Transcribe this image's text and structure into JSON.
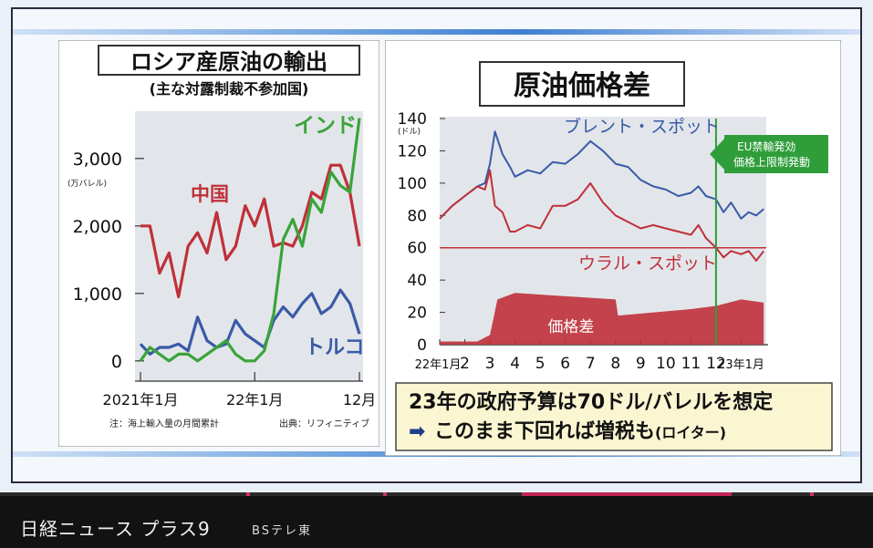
{
  "footer": {
    "title": "日経ニュース プラス9",
    "channel": "BSテレ東"
  },
  "colors": {
    "india": "#3aa43a",
    "china": "#c0303a",
    "turkey": "#3a5aa8",
    "brent": "#3a5aa8",
    "urals": "#c0303a",
    "spread": "#c0303a",
    "callout": "#2f9e3a"
  },
  "left": {
    "title": "ロシア産原油の輸出",
    "subtitle": "(主な対露制裁不参加国)",
    "note": "注：海上輸入量の月間累計",
    "source": "出典：リフィニティブ"
  },
  "right": {
    "title": "原油価格差",
    "callout_lines": [
      "EU禁輸発効",
      "価格上限制発動"
    ],
    "info_line1": "23年の政府予算は70ドル/バレルを想定",
    "info_arrow": "➡",
    "info_line2_main": "このまま下回れば増税も",
    "info_line2_small": "(ロイター)"
  },
  "chart_data": [
    {
      "type": "line",
      "title": "ロシア産原油の輸出",
      "subtitle": "(主な対露制裁不参加国)",
      "ylabel": "(万バレル)",
      "ylim": [
        -300,
        3700
      ],
      "yticks": [
        0,
        1000,
        2000,
        3000
      ],
      "ytick_labels": [
        "0",
        "1,000",
        "2,000",
        "3,000"
      ],
      "x_tick_labels": [
        "2021年1月",
        "22年1月",
        "12月"
      ],
      "x_tick_index": [
        0,
        12,
        23
      ],
      "n_points": 24,
      "series": [
        {
          "name": "インド",
          "values": [
            0,
            200,
            100,
            0,
            100,
            100,
            0,
            100,
            200,
            300,
            100,
            0,
            0,
            150,
            700,
            1800,
            2100,
            1700,
            2400,
            2200,
            2800,
            2600,
            2500,
            3600
          ]
        },
        {
          "name": "中国",
          "values": [
            2000,
            2000,
            1300,
            1600,
            950,
            1700,
            1900,
            1600,
            2200,
            1500,
            1700,
            2300,
            2000,
            2400,
            1700,
            1750,
            1700,
            2000,
            2500,
            2400,
            2900,
            2900,
            2500,
            1700
          ]
        },
        {
          "name": "トルコ",
          "values": [
            250,
            100,
            200,
            200,
            250,
            150,
            650,
            300,
            200,
            250,
            600,
            400,
            300,
            200,
            600,
            800,
            650,
            850,
            1000,
            700,
            800,
            1050,
            850,
            400
          ]
        }
      ],
      "label_positions": {
        "インド": "top-right",
        "中国": "upper-left",
        "トルコ": "bottom-right"
      }
    },
    {
      "type": "line",
      "title": "原油価格差",
      "ylabel": "(ドル)",
      "ylim": [
        0,
        140
      ],
      "yticks": [
        0,
        20,
        40,
        60,
        80,
        100,
        120,
        140
      ],
      "x_tick_labels": [
        "22年1月",
        "2",
        "3",
        "4",
        "5",
        "6",
        "7",
        "8",
        "9",
        "10",
        "11",
        "12",
        "23年1月"
      ],
      "x_range_months": [
        0,
        13
      ],
      "reference_line": 60,
      "event_month": 11,
      "series": [
        {
          "name": "ブレント・スポット",
          "x": [
            0,
            0.5,
            1,
            1.5,
            1.8,
            2,
            2.2,
            2.5,
            2.8,
            3,
            3.5,
            4,
            4.5,
            5,
            5.5,
            6,
            6.5,
            7,
            7.5,
            8,
            8.5,
            9,
            9.5,
            10,
            10.3,
            10.6,
            11,
            11.3,
            11.6,
            12,
            12.3,
            12.6,
            12.9
          ],
          "values": [
            78,
            86,
            92,
            98,
            100,
            112,
            132,
            118,
            110,
            104,
            108,
            106,
            113,
            112,
            118,
            126,
            120,
            112,
            110,
            102,
            98,
            96,
            92,
            94,
            98,
            92,
            90,
            82,
            88,
            78,
            82,
            80,
            84
          ]
        },
        {
          "name": "ウラル・スポット",
          "x": [
            0,
            0.5,
            1,
            1.5,
            1.8,
            2,
            2.2,
            2.5,
            2.8,
            3,
            3.5,
            4,
            4.5,
            5,
            5.5,
            6,
            6.5,
            7,
            7.5,
            8,
            8.5,
            9,
            9.5,
            10,
            10.3,
            10.6,
            11,
            11.3,
            11.6,
            12,
            12.3,
            12.6,
            12.9
          ],
          "values": [
            78,
            86,
            92,
            98,
            96,
            108,
            86,
            82,
            70,
            70,
            74,
            72,
            86,
            86,
            90,
            100,
            88,
            80,
            76,
            72,
            74,
            72,
            70,
            68,
            74,
            66,
            60,
            54,
            58,
            56,
            58,
            52,
            58
          ]
        },
        {
          "name": "価格差",
          "type": "area",
          "x": [
            0,
            1.5,
            2,
            2.3,
            3,
            5,
            7,
            7.1,
            10,
            11,
            12,
            12.9
          ],
          "values": [
            2,
            2,
            6,
            28,
            32,
            30,
            28,
            18,
            22,
            24,
            28,
            26
          ]
        }
      ]
    }
  ]
}
